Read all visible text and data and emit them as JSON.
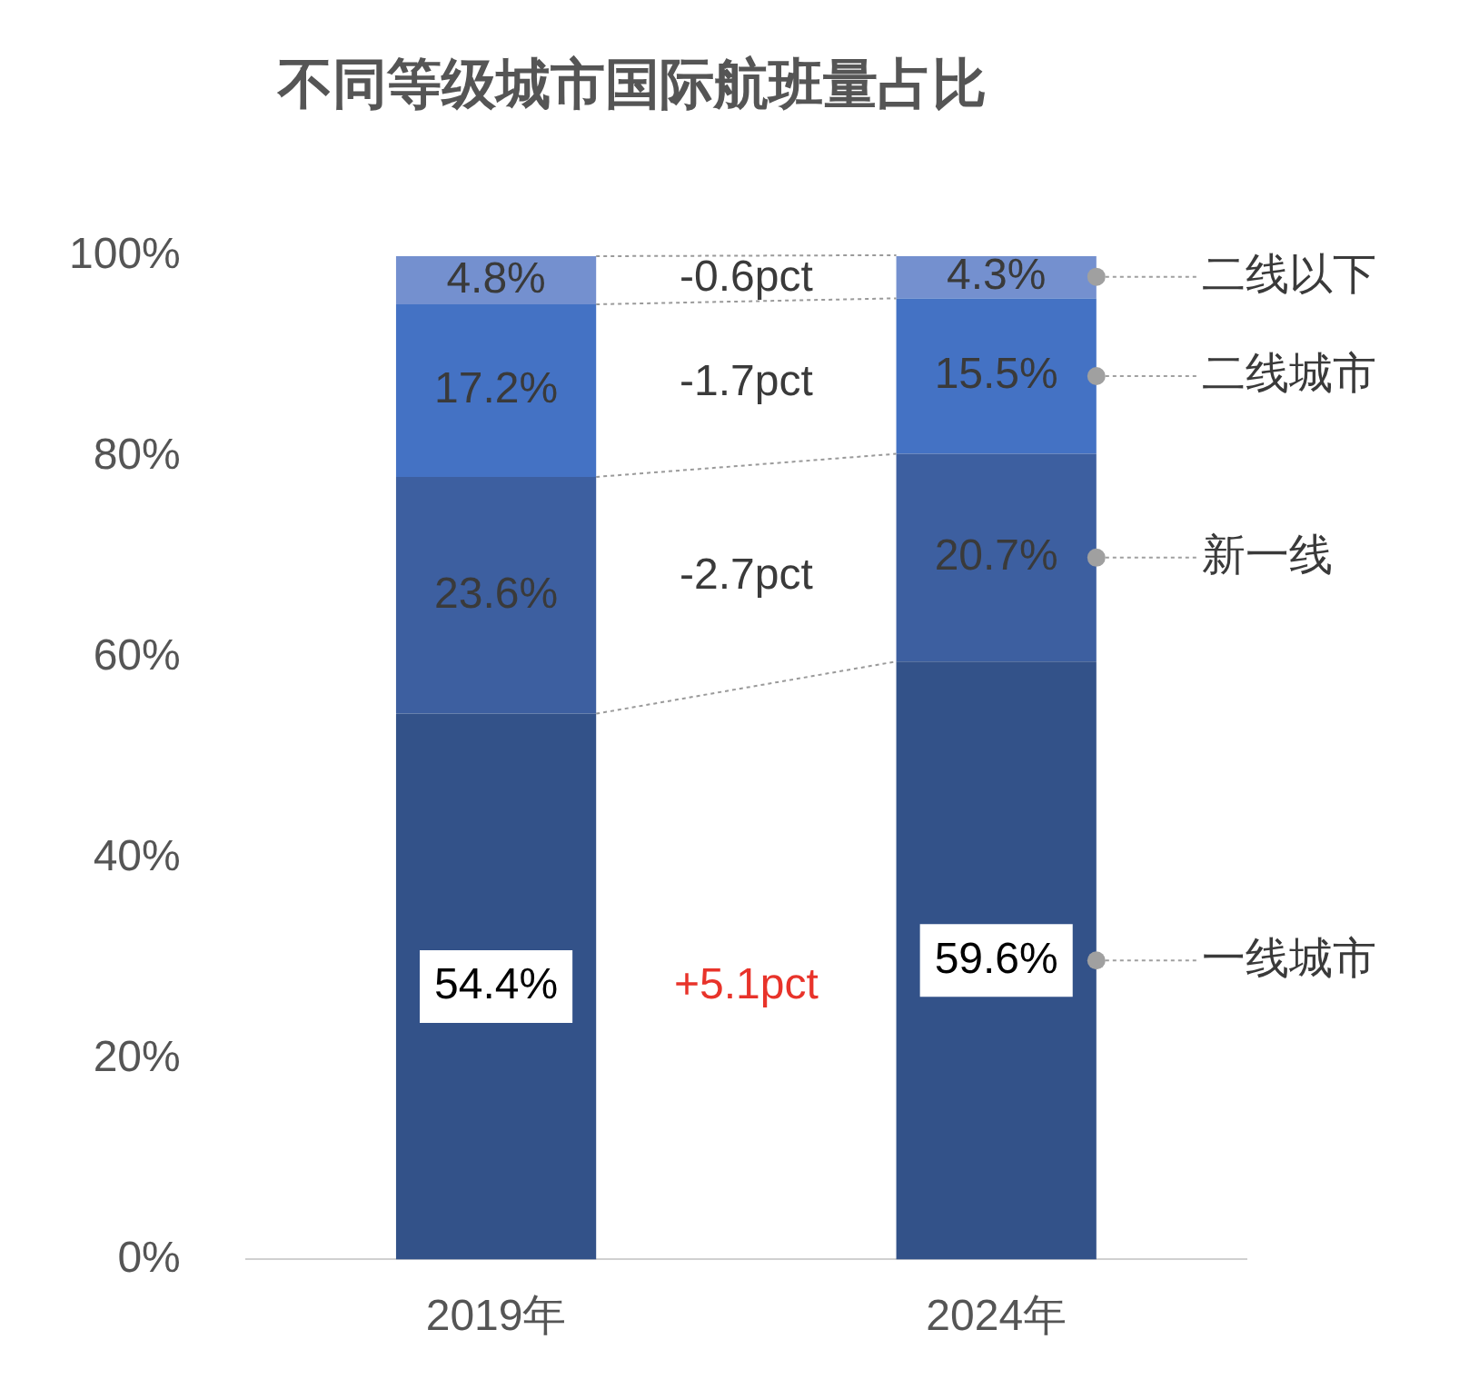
{
  "chart_data": {
    "type": "bar",
    "title": "不同等级城市国际航班量占比",
    "categories": [
      "2019年",
      "2024年"
    ],
    "stacked": true,
    "series": [
      {
        "name": "一线城市",
        "color": "#335289",
        "values": [
          54.4,
          59.6
        ],
        "value_labels": [
          "54.4%",
          "59.6%"
        ]
      },
      {
        "name": "新一线",
        "color": "#3d5fa0",
        "values": [
          23.6,
          20.7
        ],
        "value_labels": [
          "23.6%",
          "20.7%"
        ]
      },
      {
        "name": "二线城市",
        "color": "#4472c4",
        "values": [
          17.2,
          15.5
        ],
        "value_labels": [
          "17.2%",
          "15.5%"
        ]
      },
      {
        "name": "二线以下",
        "color": "#7490cf",
        "values": [
          4.8,
          4.3
        ],
        "value_labels": [
          "4.8%",
          "4.3%"
        ]
      }
    ],
    "ylim": [
      0,
      100
    ],
    "yticks": [
      {
        "value": 0,
        "label": "0%"
      },
      {
        "value": 20,
        "label": "20%"
      },
      {
        "value": 40,
        "label": "40%"
      },
      {
        "value": 60,
        "label": "60%"
      },
      {
        "value": 80,
        "label": "80%"
      },
      {
        "value": 100,
        "label": "100%"
      }
    ],
    "grid": false,
    "legend": false,
    "annotations": [
      "+5.1pct",
      "-2.7pct",
      "-1.7pct",
      "-0.6pct"
    ]
  }
}
